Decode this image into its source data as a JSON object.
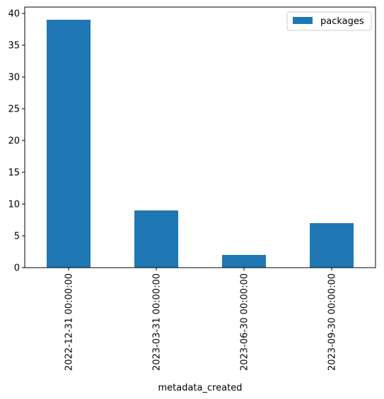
{
  "chart_data": {
    "type": "bar",
    "title": "",
    "xlabel": "metadata_created",
    "ylabel": "",
    "categories": [
      "2022-12-31 00:00:00",
      "2023-03-31 00:00:00",
      "2023-06-30 00:00:00",
      "2023-09-30 00:00:00"
    ],
    "series": [
      {
        "name": "packages",
        "values": [
          39,
          9,
          2,
          7
        ],
        "color": "#1f77b4"
      }
    ],
    "ylim": [
      0,
      41
    ],
    "yticks": [
      0,
      5,
      10,
      15,
      20,
      25,
      30,
      35,
      40
    ],
    "grid": false,
    "legend": {
      "position": "top-right"
    }
  }
}
